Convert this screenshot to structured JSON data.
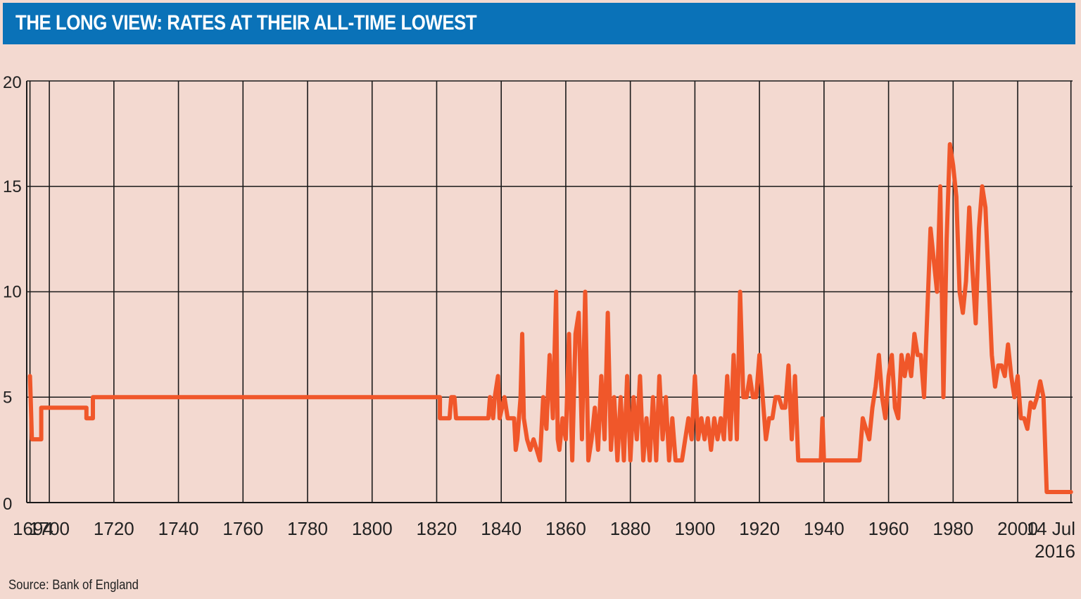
{
  "title": "THE LONG VIEW: RATES AT THEIR ALL-TIME LOWEST",
  "source": "Source: Bank of England",
  "colors": {
    "header": "#0a72b8",
    "background": "#f3d9d0",
    "line": "#f0572a",
    "grid": "#1a1a1a"
  },
  "chart_data": {
    "type": "line",
    "title": "THE LONG VIEW: RATES AT THEIR ALL-TIME LOWEST",
    "xlabel": "",
    "ylabel": "",
    "ylim": [
      0,
      20
    ],
    "xlim": [
      1693,
      2017
    ],
    "yticks": [
      0,
      5,
      10,
      15,
      20
    ],
    "xticks": [
      {
        "value": 1694,
        "label": "1694"
      },
      {
        "value": 1700,
        "label": "1700"
      },
      {
        "value": 1720,
        "label": "1720"
      },
      {
        "value": 1740,
        "label": "1740"
      },
      {
        "value": 1760,
        "label": "1760"
      },
      {
        "value": 1780,
        "label": "1780"
      },
      {
        "value": 1800,
        "label": "1800"
      },
      {
        "value": 1820,
        "label": "1820"
      },
      {
        "value": 1840,
        "label": "1840"
      },
      {
        "value": 1860,
        "label": "1860"
      },
      {
        "value": 1880,
        "label": "1880"
      },
      {
        "value": 1900,
        "label": "1900"
      },
      {
        "value": 1920,
        "label": "1920"
      },
      {
        "value": 1940,
        "label": "1940"
      },
      {
        "value": 1960,
        "label": "1960"
      },
      {
        "value": 1980,
        "label": "1980"
      },
      {
        "value": 2000,
        "label": "2000"
      },
      {
        "value": 2016.5,
        "label": "14 Jul",
        "label2": "2016"
      }
    ],
    "grid": true,
    "series": [
      {
        "name": "",
        "points": [
          [
            1694.0,
            6
          ],
          [
            1694.3,
            4.5
          ],
          [
            1694.6,
            3
          ],
          [
            1697.5,
            3
          ],
          [
            1697.5,
            4.5
          ],
          [
            1711.5,
            4.5
          ],
          [
            1711.5,
            4
          ],
          [
            1713.5,
            4
          ],
          [
            1713.5,
            5
          ],
          [
            1821.0,
            5
          ],
          [
            1821.0,
            4
          ],
          [
            1824.0,
            4
          ],
          [
            1824.5,
            5
          ],
          [
            1825.5,
            5
          ],
          [
            1826.0,
            4
          ],
          [
            1836.0,
            4
          ],
          [
            1836.5,
            5
          ],
          [
            1837.5,
            4
          ],
          [
            1838.0,
            5
          ],
          [
            1839.0,
            6
          ],
          [
            1839.5,
            4
          ],
          [
            1841.0,
            5
          ],
          [
            1842.0,
            4
          ],
          [
            1844.0,
            4
          ],
          [
            1844.5,
            2.5
          ],
          [
            1845.0,
            3
          ],
          [
            1846.0,
            5
          ],
          [
            1846.5,
            8
          ],
          [
            1847.0,
            4
          ],
          [
            1848.0,
            3
          ],
          [
            1849.0,
            2.5
          ],
          [
            1850.0,
            3
          ],
          [
            1851.0,
            2.5
          ],
          [
            1852.0,
            2
          ],
          [
            1853.0,
            5
          ],
          [
            1854.0,
            3.5
          ],
          [
            1855.0,
            7
          ],
          [
            1856.0,
            4
          ],
          [
            1857.0,
            10
          ],
          [
            1857.5,
            3
          ],
          [
            1858.0,
            2.5
          ],
          [
            1859.0,
            4
          ],
          [
            1860.0,
            3
          ],
          [
            1861.0,
            8
          ],
          [
            1862.0,
            2
          ],
          [
            1863.0,
            8
          ],
          [
            1864.0,
            9
          ],
          [
            1865.0,
            3
          ],
          [
            1866.0,
            10
          ],
          [
            1867.0,
            2
          ],
          [
            1868.0,
            3
          ],
          [
            1869.0,
            4.5
          ],
          [
            1870.0,
            2.5
          ],
          [
            1871.0,
            6
          ],
          [
            1872.0,
            3
          ],
          [
            1873.0,
            9
          ],
          [
            1874.0,
            2.5
          ],
          [
            1875.0,
            5
          ],
          [
            1876.0,
            2
          ],
          [
            1877.0,
            5
          ],
          [
            1878.0,
            2
          ],
          [
            1879.0,
            6
          ],
          [
            1880.0,
            2
          ],
          [
            1881.0,
            5
          ],
          [
            1882.0,
            3
          ],
          [
            1883.0,
            6
          ],
          [
            1884.0,
            2
          ],
          [
            1885.0,
            4
          ],
          [
            1886.0,
            2
          ],
          [
            1887.0,
            5
          ],
          [
            1888.0,
            2
          ],
          [
            1889.0,
            6
          ],
          [
            1890.0,
            3
          ],
          [
            1891.0,
            5
          ],
          [
            1892.0,
            2
          ],
          [
            1893.0,
            4
          ],
          [
            1894.0,
            2
          ],
          [
            1895.0,
            2
          ],
          [
            1896.0,
            2
          ],
          [
            1897.0,
            3
          ],
          [
            1898.0,
            4
          ],
          [
            1899.0,
            3
          ],
          [
            1900.0,
            6
          ],
          [
            1901.0,
            3
          ],
          [
            1902.0,
            4
          ],
          [
            1903.0,
            3
          ],
          [
            1904.0,
            4
          ],
          [
            1905.0,
            2.5
          ],
          [
            1906.0,
            4
          ],
          [
            1907.0,
            3
          ],
          [
            1908.0,
            4
          ],
          [
            1909.0,
            3
          ],
          [
            1910.0,
            6
          ],
          [
            1911.0,
            3
          ],
          [
            1912.0,
            7
          ],
          [
            1913.0,
            3
          ],
          [
            1914.0,
            10
          ],
          [
            1915.0,
            5
          ],
          [
            1916.0,
            5
          ],
          [
            1917.0,
            6
          ],
          [
            1918.0,
            5
          ],
          [
            1919.0,
            5
          ],
          [
            1920.0,
            7
          ],
          [
            1921.0,
            5
          ],
          [
            1922.0,
            3
          ],
          [
            1923.0,
            4
          ],
          [
            1924.0,
            4
          ],
          [
            1925.0,
            5
          ],
          [
            1926.0,
            5
          ],
          [
            1927.0,
            4.5
          ],
          [
            1928.0,
            4.5
          ],
          [
            1929.0,
            6.5
          ],
          [
            1930.0,
            3
          ],
          [
            1931.0,
            6
          ],
          [
            1932.0,
            2
          ],
          [
            1939.0,
            2
          ],
          [
            1939.5,
            4
          ],
          [
            1940.0,
            2
          ],
          [
            1951.0,
            2
          ],
          [
            1952.0,
            4
          ],
          [
            1953.0,
            3.5
          ],
          [
            1954.0,
            3
          ],
          [
            1955.0,
            4.5
          ],
          [
            1956.0,
            5.5
          ],
          [
            1957.0,
            7
          ],
          [
            1958.0,
            5
          ],
          [
            1959.0,
            4
          ],
          [
            1960.0,
            6
          ],
          [
            1961.0,
            7
          ],
          [
            1962.0,
            4.5
          ],
          [
            1963.0,
            4
          ],
          [
            1964.0,
            7
          ],
          [
            1965.0,
            6
          ],
          [
            1966.0,
            7
          ],
          [
            1967.0,
            6
          ],
          [
            1968.0,
            8
          ],
          [
            1969.0,
            7
          ],
          [
            1970.0,
            7
          ],
          [
            1971.0,
            5
          ],
          [
            1972.0,
            9
          ],
          [
            1973.0,
            13
          ],
          [
            1974.0,
            11.5
          ],
          [
            1975.0,
            10
          ],
          [
            1976.0,
            15
          ],
          [
            1977.0,
            5
          ],
          [
            1978.0,
            12.5
          ],
          [
            1979.0,
            17
          ],
          [
            1980.0,
            16
          ],
          [
            1981.0,
            14.5
          ],
          [
            1982.0,
            10
          ],
          [
            1983.0,
            9
          ],
          [
            1984.0,
            10.5
          ],
          [
            1985.0,
            14
          ],
          [
            1986.0,
            11
          ],
          [
            1987.0,
            8.5
          ],
          [
            1988.0,
            13
          ],
          [
            1989.0,
            15
          ],
          [
            1990.0,
            14
          ],
          [
            1991.0,
            10.5
          ],
          [
            1992.0,
            7
          ],
          [
            1993.0,
            5.5
          ],
          [
            1994.0,
            6.5
          ],
          [
            1995.0,
            6.5
          ],
          [
            1996.0,
            6
          ],
          [
            1997.0,
            7.5
          ],
          [
            1998.0,
            6
          ],
          [
            1999.0,
            5
          ],
          [
            2000.0,
            6
          ],
          [
            2001.0,
            4
          ],
          [
            2002.0,
            4
          ],
          [
            2003.0,
            3.5
          ],
          [
            2004.0,
            4.75
          ],
          [
            2005.0,
            4.5
          ],
          [
            2006.0,
            5
          ],
          [
            2007.0,
            5.75
          ],
          [
            2008.0,
            5
          ],
          [
            2009.0,
            0.5
          ],
          [
            2016.5,
            0.5
          ]
        ]
      }
    ]
  }
}
